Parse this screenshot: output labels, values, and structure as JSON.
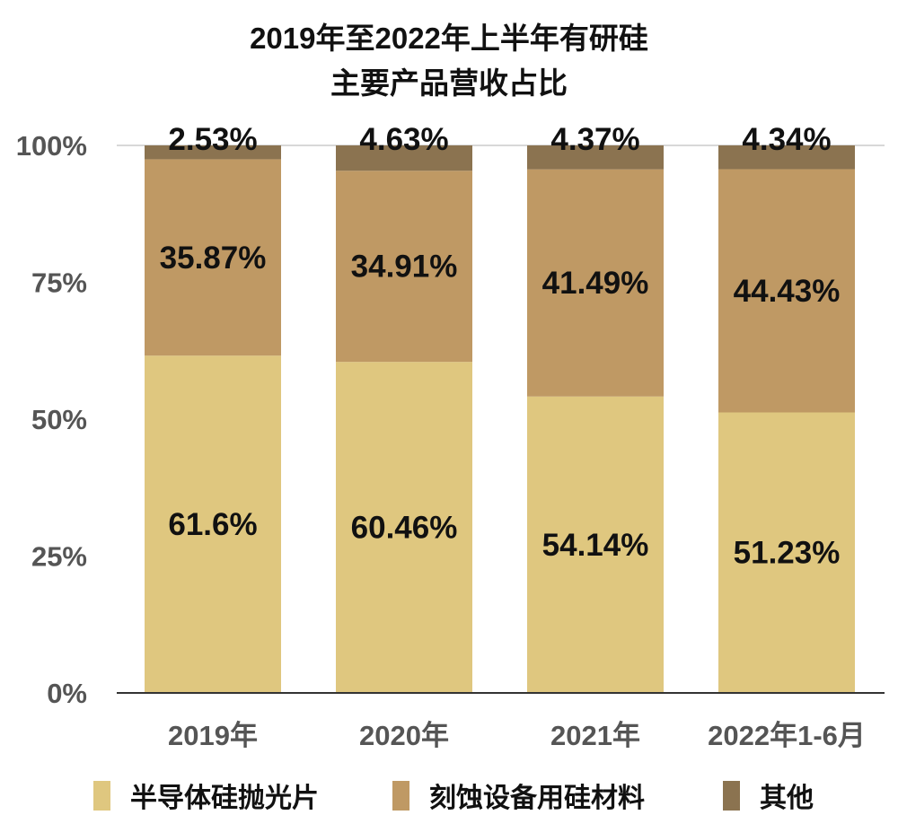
{
  "chart_data": {
    "type": "bar",
    "stacked": true,
    "title": [
      "2019年至2022年上半年有研硅",
      "主要产品营收占比"
    ],
    "categories": [
      "2019年",
      "2020年",
      "2021年",
      "2022年1-6月"
    ],
    "ylim": [
      0,
      100
    ],
    "yticks": [
      "0%",
      "25%",
      "50%",
      "75%",
      "100%"
    ],
    "legend_position": "bottom",
    "grid": false,
    "series": [
      {
        "name": "半导体硅抛光片",
        "color": "#dfc77f",
        "values": [
          61.6,
          60.46,
          54.14,
          51.23
        ],
        "labels": [
          "61.6%",
          "60.46%",
          "54.14%",
          "51.23%"
        ]
      },
      {
        "name": "刻蚀设备用硅材料",
        "color": "#bf9964",
        "values": [
          35.87,
          34.91,
          41.49,
          44.43
        ],
        "labels": [
          "35.87%",
          "34.91%",
          "41.49%",
          "44.43%"
        ]
      },
      {
        "name": "其他",
        "color": "#8b7350",
        "values": [
          2.53,
          4.63,
          4.37,
          4.34
        ],
        "labels": [
          "2.53%",
          "4.63%",
          "4.37%",
          "4.34%"
        ]
      }
    ]
  }
}
